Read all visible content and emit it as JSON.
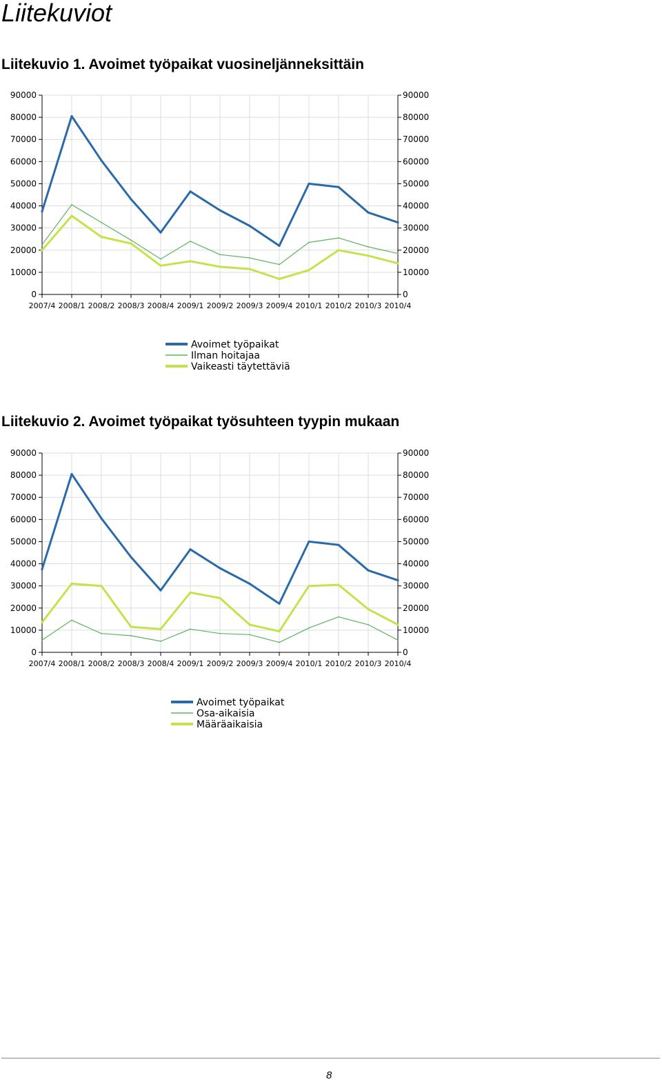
{
  "page": {
    "title": "Liitekuviot",
    "page_number": "8"
  },
  "figures": [
    {
      "caption": "Liitekuvio 1. Avoimet työpaikat vuosineljänneksittäin"
    },
    {
      "caption": "Liitekuvio 2. Avoimet työpaikat työsuhteen tyypin mukaan"
    }
  ],
  "chart_data": [
    {
      "type": "line",
      "title": "",
      "xlabel": "",
      "ylabel": "",
      "ylim": [
        0,
        90000
      ],
      "yticks": [
        "0",
        "10000",
        "20000",
        "30000",
        "40000",
        "50000",
        "60000",
        "70000",
        "80000",
        "90000"
      ],
      "secondary_y_axis": true,
      "grid": true,
      "legend_position": "bottom",
      "categories": [
        "2007/4",
        "2008/1",
        "2008/2",
        "2008/3",
        "2008/4",
        "2009/1",
        "2009/2",
        "2009/3",
        "2009/4",
        "2010/1",
        "2010/2",
        "2010/3",
        "2010/4"
      ],
      "series": [
        {
          "name": "Avoimet työpaikat",
          "color": "#2a6aa9",
          "style": "thick",
          "values": [
            37500,
            80500,
            60500,
            43000,
            28000,
            46500,
            38000,
            31000,
            22000,
            50000,
            48500,
            37000,
            32500
          ]
        },
        {
          "name": "Ilman hoitajaa",
          "color": "#5cb35c",
          "style": "thin",
          "values": [
            22500,
            40500,
            32500,
            24500,
            16000,
            24000,
            18000,
            16500,
            13500,
            23500,
            25500,
            21500,
            18500
          ]
        },
        {
          "name": "Vaikeasti täytettäviä",
          "color": "#c4e34a",
          "style": "thick",
          "values": [
            20000,
            35500,
            26000,
            23000,
            13000,
            15000,
            12500,
            11500,
            7000,
            11000,
            20000,
            17500,
            14000
          ]
        }
      ]
    },
    {
      "type": "line",
      "title": "",
      "xlabel": "",
      "ylabel": "",
      "ylim": [
        0,
        90000
      ],
      "yticks": [
        "0",
        "10000",
        "20000",
        "30000",
        "40000",
        "50000",
        "60000",
        "70000",
        "80000",
        "90000"
      ],
      "secondary_y_axis": true,
      "grid": true,
      "legend_position": "bottom",
      "categories": [
        "2007/4",
        "2008/1",
        "2008/2",
        "2008/3",
        "2008/4",
        "2009/1",
        "2009/2",
        "2009/3",
        "2009/4",
        "2010/1",
        "2010/2",
        "2010/3",
        "2010/4"
      ],
      "series": [
        {
          "name": "Avoimet työpaikat",
          "color": "#2a6aa9",
          "style": "thick",
          "values": [
            37500,
            80500,
            60500,
            43000,
            28000,
            46500,
            38000,
            31000,
            22000,
            50000,
            48500,
            37000,
            32500
          ]
        },
        {
          "name": "Osa-aikaisia",
          "color": "#5cb35c",
          "style": "thin",
          "values": [
            5500,
            14500,
            8500,
            7500,
            5000,
            10500,
            8500,
            8000,
            4500,
            11000,
            16000,
            12500,
            5500
          ]
        },
        {
          "name": "Määräaikaisia",
          "color": "#c4e34a",
          "style": "thick",
          "values": [
            13500,
            31000,
            30000,
            11500,
            10500,
            27000,
            24500,
            12500,
            9500,
            30000,
            30500,
            19500,
            12500
          ]
        }
      ]
    }
  ]
}
